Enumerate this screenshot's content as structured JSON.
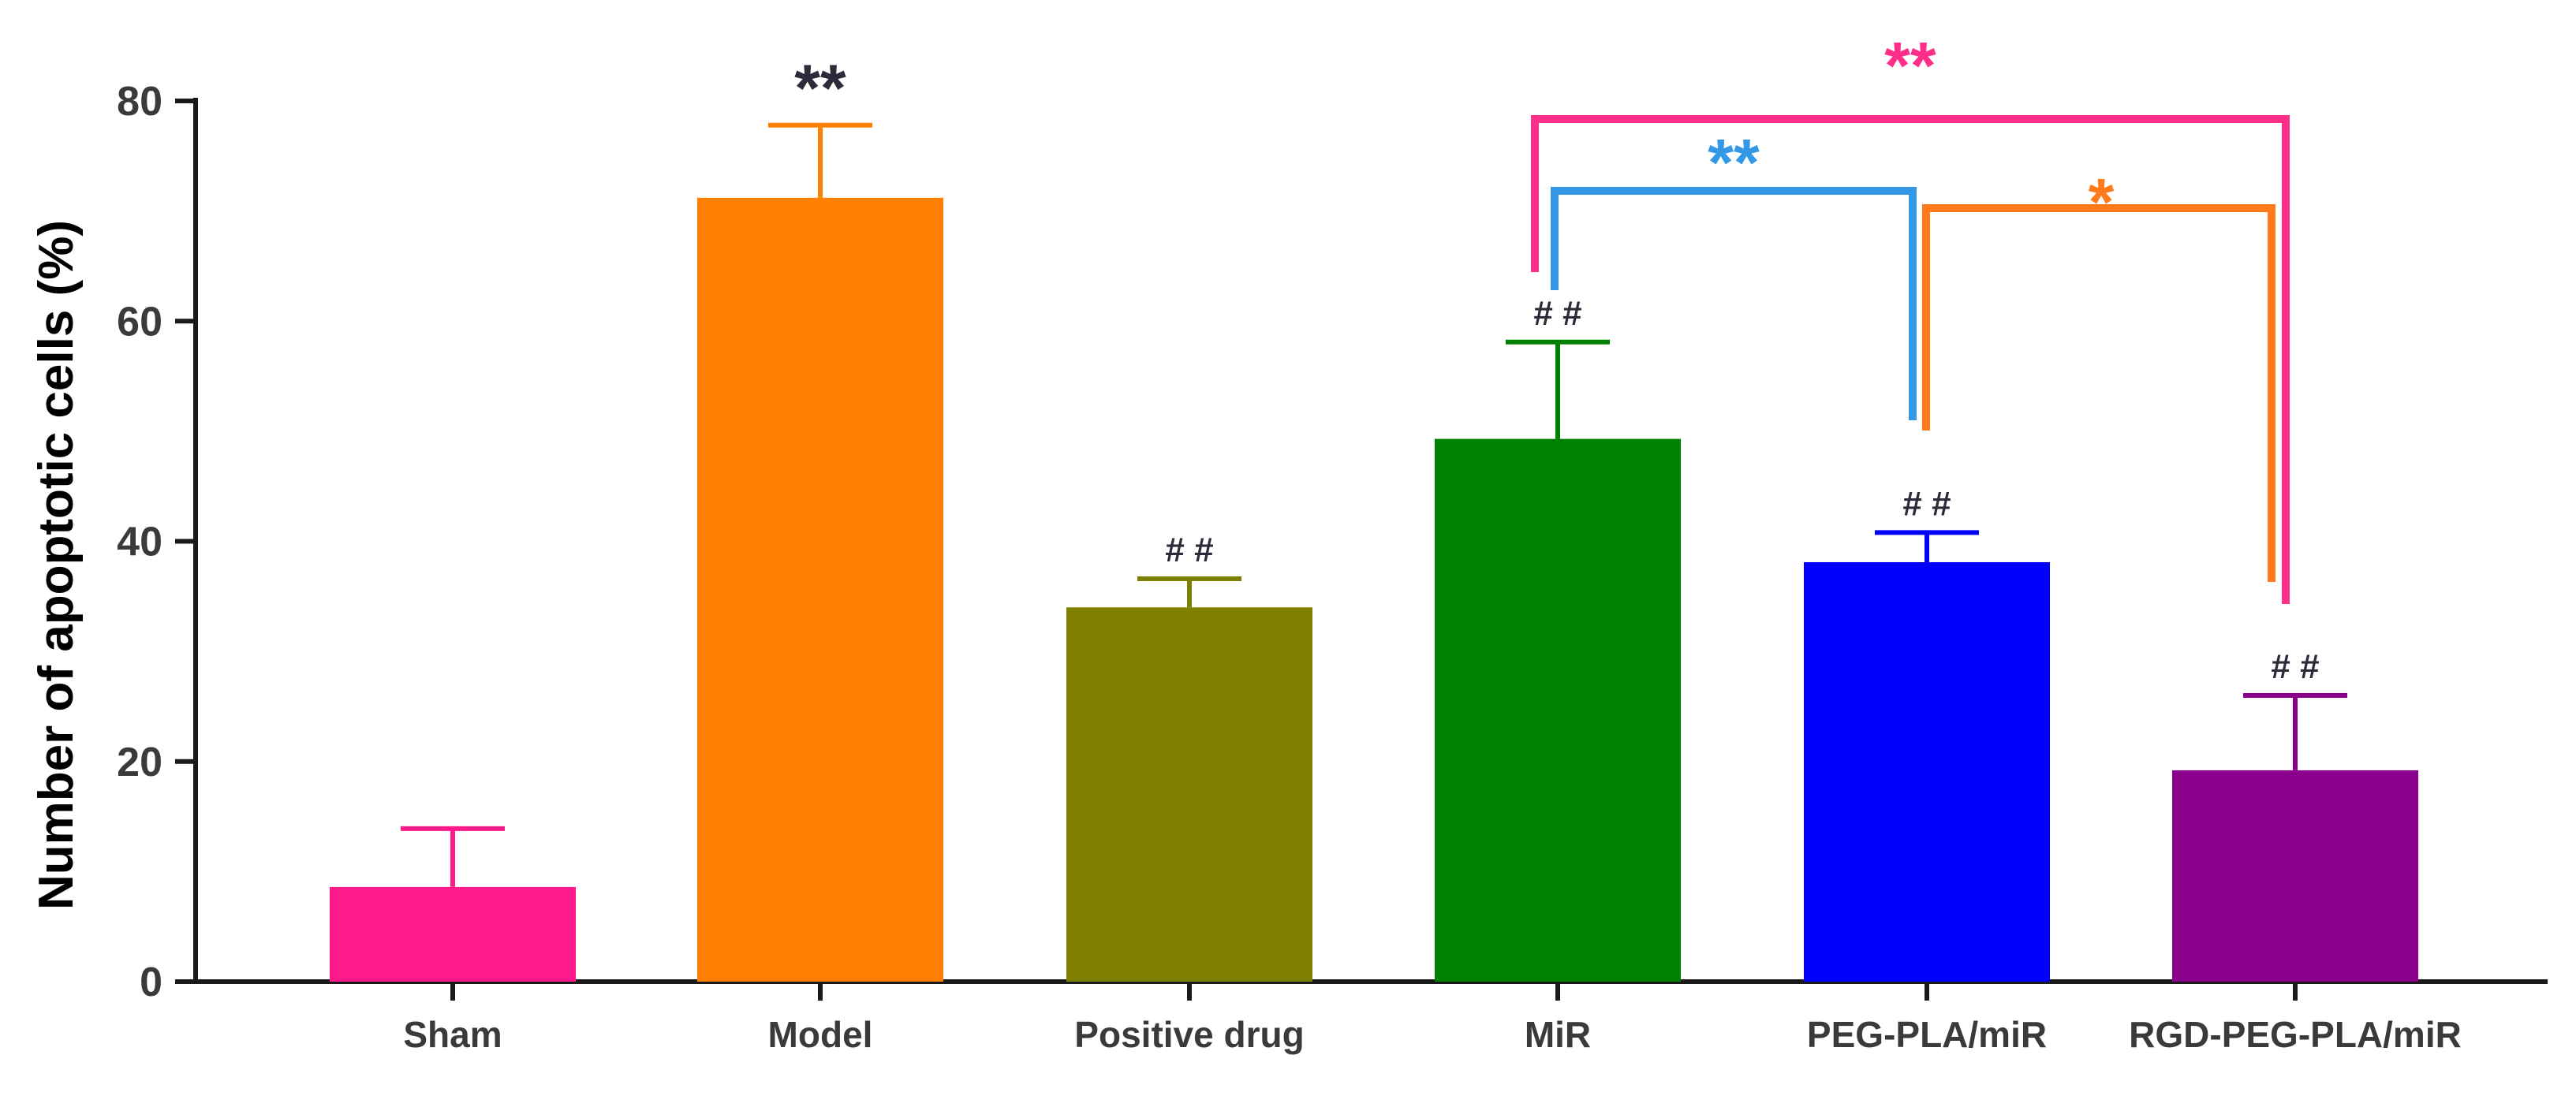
{
  "chart_data": {
    "type": "bar",
    "title": "",
    "xlabel": "",
    "ylabel": "Number of apoptotic cells (%)",
    "ylim": [
      0,
      80
    ],
    "yticks": [
      0,
      20,
      40,
      60,
      80
    ],
    "categories": [
      "Sham",
      "Model",
      "Positive drug",
      "MiR",
      "PEG-PLA/miR",
      "RGD-PEG-PLA/miR"
    ],
    "values": [
      8.6,
      71.2,
      34.0,
      49.3,
      38.1,
      19.2
    ],
    "errors": [
      5.3,
      6.6,
      2.6,
      8.8,
      2.7,
      6.8
    ],
    "bar_colors": [
      "#ff1a8c",
      "#ff8000",
      "#808000",
      "#008000",
      "#0000ff",
      "#8b008b"
    ],
    "bar_annotations": [
      "",
      "**",
      "# #",
      "# #",
      "# #",
      "# #"
    ],
    "bar_annotation_color": "#2b2b3a",
    "comparisons": [
      {
        "from": "MiR",
        "to": "RGD-PEG-PLA/miR",
        "label": "**",
        "color": "#ff2e8a"
      },
      {
        "from": "MiR",
        "to": "PEG-PLA/miR",
        "label": "**",
        "color": "#3399e6"
      },
      {
        "from": "PEG-PLA/miR",
        "to": "RGD-PEG-PLA/miR",
        "label": "*",
        "color": "#ff7a1a"
      }
    ],
    "grid": false,
    "legend": "none"
  }
}
